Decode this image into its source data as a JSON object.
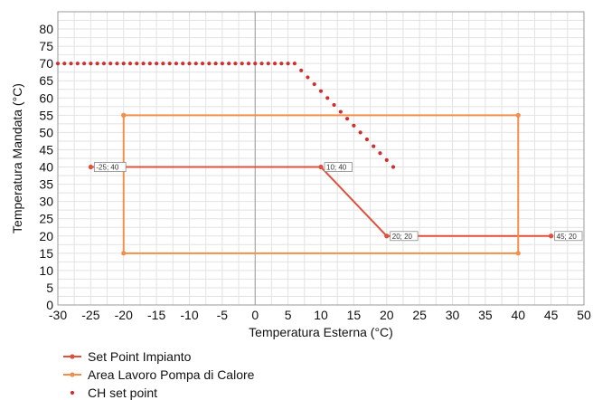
{
  "chart_data": {
    "type": "line",
    "xlabel": "Temperatura Esterna (°C)",
    "ylabel": "Temperatura Mandata (°C)",
    "xlim": [
      -30,
      50
    ],
    "ylim": [
      0,
      85
    ],
    "xticks": [
      -30,
      -25,
      -20,
      -15,
      -10,
      -5,
      0,
      5,
      10,
      15,
      20,
      25,
      30,
      35,
      40,
      45,
      50
    ],
    "yticks": [
      0,
      5,
      10,
      15,
      20,
      25,
      30,
      35,
      40,
      45,
      50,
      55,
      60,
      65,
      70,
      75,
      80
    ],
    "grid": true,
    "legend_position": "bottom-left",
    "series": [
      {
        "name": "Set Point Impianto",
        "style": "line-markers",
        "color": "#e0503c",
        "x": [
          -25,
          -20,
          10,
          20,
          45
        ],
        "y": [
          40,
          40,
          40,
          20,
          20
        ],
        "point_labels": [
          {
            "x": -25,
            "y": 40,
            "text": "-25; 40"
          },
          {
            "x": 10,
            "y": 40,
            "text": "10; 40"
          },
          {
            "x": 20,
            "y": 20,
            "text": "20; 20"
          },
          {
            "x": 45,
            "y": 20,
            "text": "45; 20"
          }
        ]
      },
      {
        "name": "Area Lavoro Pompa di Calore",
        "style": "line-markers",
        "color": "#f0904c",
        "x": [
          -20,
          40,
          40,
          -20,
          -20
        ],
        "y": [
          55,
          55,
          15,
          15,
          55
        ]
      },
      {
        "name": "CH set point",
        "style": "dots",
        "color": "#cc3030",
        "x": [
          -30,
          -29,
          -28,
          -27,
          -26,
          -25,
          -24,
          -23,
          -22,
          -21,
          -20,
          -19,
          -18,
          -17,
          -16,
          -15,
          -14,
          -13,
          -12,
          -11,
          -10,
          -9,
          -8,
          -7,
          -6,
          -5,
          -4,
          -3,
          -2,
          -1,
          0,
          1,
          2,
          3,
          4,
          5,
          6,
          7,
          8,
          9,
          10,
          11,
          12,
          13,
          14,
          15,
          16,
          17,
          18,
          19,
          20,
          21
        ],
        "y": [
          70,
          70,
          70,
          70,
          70,
          70,
          70,
          70,
          70,
          70,
          70,
          70,
          70,
          70,
          70,
          70,
          70,
          70,
          70,
          70,
          70,
          70,
          70,
          70,
          70,
          70,
          70,
          70,
          70,
          70,
          70,
          70,
          70,
          70,
          70,
          70,
          70,
          68,
          66,
          64,
          62,
          60,
          58,
          56,
          54,
          52,
          50,
          48,
          46,
          44,
          42,
          40
        ]
      }
    ]
  }
}
